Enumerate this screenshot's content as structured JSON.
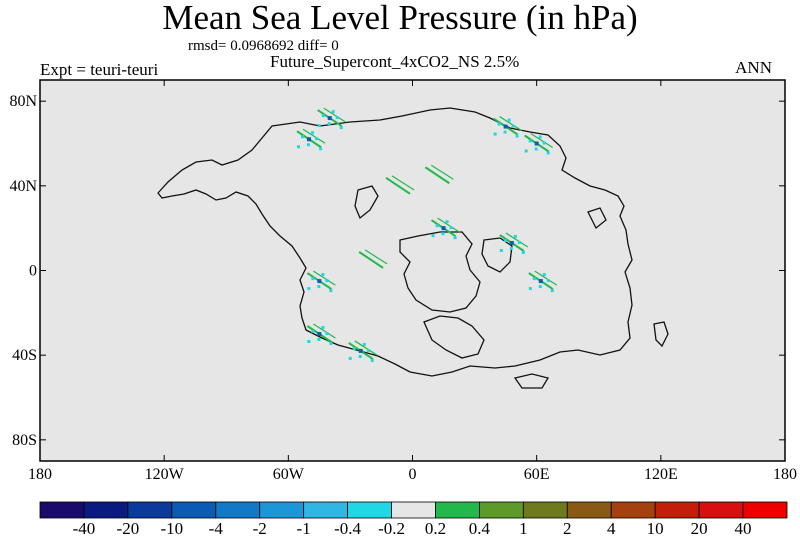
{
  "title": "Mean Sea Level Pressure (in hPa)",
  "stats": "rmsd= 0.0968692 diff= 0",
  "subtitle": "Future_Supercont_4xCO2_NS 2.5%",
  "experiment": "Expt = teuri-teuri",
  "season": "ANN",
  "chart_data": {
    "type": "heatmap",
    "title": "Mean Sea Level Pressure (in hPa)",
    "xlim": [
      -180,
      180
    ],
    "ylim": [
      -90,
      90
    ],
    "x_ticks": [
      -180,
      -120,
      -60,
      0,
      60,
      120,
      180
    ],
    "x_tick_labels": [
      "180",
      "120W",
      "60W",
      "0",
      "60E",
      "120E",
      "180"
    ],
    "y_ticks": [
      80,
      40,
      0,
      -40,
      -80
    ],
    "y_tick_labels": [
      "80N",
      "40N",
      "0",
      "40S",
      "80S"
    ],
    "colorbar": {
      "labels": [
        "-40",
        "-20",
        "-10",
        "-4",
        "-2",
        "-1",
        "-0.4",
        "-0.2",
        "0.2",
        "0.4",
        "1",
        "2",
        "4",
        "10",
        "20",
        "40"
      ],
      "colors": [
        "#1a0a6b",
        "#0b1a80",
        "#0a3a9c",
        "#0b5bb5",
        "#1079c8",
        "#1a97d6",
        "#2fb6e3",
        "#20d8e3",
        "#e6e6e6",
        "#22b84c",
        "#5e9a2a",
        "#6e7a1c",
        "#8a5a14",
        "#a5400f",
        "#c21e0a",
        "#d90f0f",
        "#ee0000"
      ]
    },
    "features": [
      {
        "x": -50,
        "y": 62,
        "value": 0.4,
        "sign": "mixed"
      },
      {
        "x": -40,
        "y": 72,
        "value": 0.4,
        "sign": "mixed"
      },
      {
        "x": 45,
        "y": 68,
        "value": 0.4,
        "sign": "mixed"
      },
      {
        "x": 60,
        "y": 60,
        "value": 0.4,
        "sign": "mixed"
      },
      {
        "x": 12,
        "y": 45,
        "value": 0.4,
        "sign": "positive"
      },
      {
        "x": -7,
        "y": 40,
        "value": 0.2,
        "sign": "positive"
      },
      {
        "x": 15,
        "y": 20,
        "value": 0.4,
        "sign": "mixed"
      },
      {
        "x": 48,
        "y": 13,
        "value": 0.4,
        "sign": "mixed"
      },
      {
        "x": 62,
        "y": -5,
        "value": 0.4,
        "sign": "mixed"
      },
      {
        "x": -45,
        "y": -5,
        "value": 0.4,
        "sign": "mixed"
      },
      {
        "x": -20,
        "y": 5,
        "value": 0.2,
        "sign": "positive"
      },
      {
        "x": -45,
        "y": -30,
        "value": 0.4,
        "sign": "mixed"
      },
      {
        "x": -25,
        "y": -38,
        "value": 0.4,
        "sign": "mixed"
      }
    ]
  }
}
